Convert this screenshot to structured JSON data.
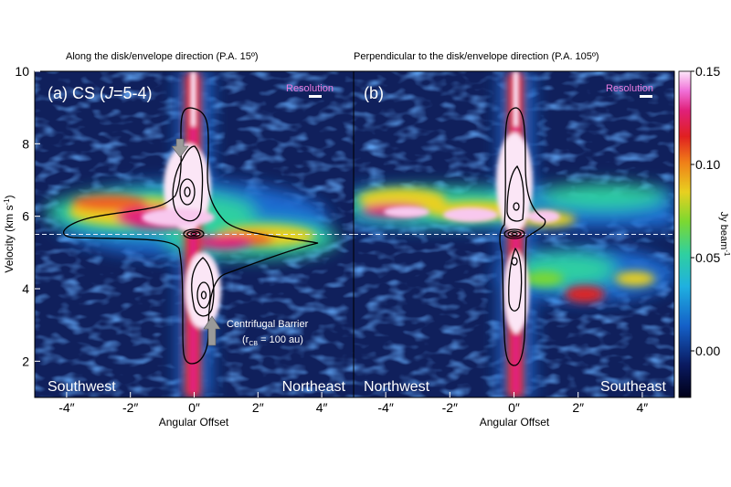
{
  "chart_data": [
    {
      "type": "heatmap",
      "title": "Along the disk/envelope direction (P.A. 15º)",
      "panel_label": "(a) CS (J=5-4)",
      "panel_label_parts": [
        "(a) CS (",
        "J",
        "=5-4)"
      ],
      "resolution_label": "Resolution",
      "xlabel": "Angular Offset",
      "ylabel": "Velocity (km s⁻¹)",
      "ylabel_parts": [
        "Velocity (km s",
        "-1",
        ")"
      ],
      "xlim": [
        -5.0,
        5.0
      ],
      "ylim": [
        1.0,
        10.0
      ],
      "xticks": [
        -4,
        -2,
        0,
        2,
        4
      ],
      "xtick_labels": [
        "-4″",
        "-2″",
        "0″",
        "2″",
        "4″"
      ],
      "yticks": [
        2,
        4,
        6,
        8,
        10
      ],
      "ytick_labels": [
        "2",
        "4",
        "6",
        "8",
        "10"
      ],
      "systemic_velocity": 5.5,
      "left_corner_label": "Southwest",
      "right_corner_label": "Northeast",
      "annotation": "Centrifugal Barrier",
      "annotation_sub": "(rCB = 100 au)",
      "annotation_sub_parts": [
        "(r",
        "CB",
        " = 100 au)"
      ],
      "arrows": [
        {
          "x": -0.25,
          "y": 8.0,
          "direction": "down"
        },
        {
          "x": 0.25,
          "y": 3.0,
          "direction": "up"
        }
      ]
    },
    {
      "type": "heatmap",
      "title": "Perpendicular to the disk/envelope direction (P.A. 105º)",
      "panel_label": "(b)",
      "resolution_label": "Resolution",
      "xlabel": "Angular Offset",
      "xlim": [
        -5.0,
        5.0
      ],
      "ylim": [
        1.0,
        10.0
      ],
      "xticks": [
        -4,
        -2,
        0,
        2,
        4
      ],
      "xtick_labels": [
        "-4″",
        "-2″",
        "0″",
        "2″",
        "4″"
      ],
      "systemic_velocity": 5.5,
      "left_corner_label": "Northwest",
      "right_corner_label": "Southeast"
    }
  ],
  "colorbar": {
    "label": "Jy beam⁻¹",
    "label_parts": [
      "Jy beam",
      "-1"
    ],
    "range": [
      -0.025,
      0.15
    ],
    "ticks": [
      0.0,
      0.05,
      0.1,
      0.15
    ],
    "tick_labels": [
      "0.00",
      "0.05",
      "0.10",
      "0.15"
    ]
  },
  "colors": {
    "background": "#10205c",
    "emission_low": "#1b6bd0",
    "emission_mid": "#2fd0a0",
    "emission_high": "#e8d020",
    "emission_peak": "#e0207a",
    "saturated": "#fbe6f6",
    "contour": "#000000",
    "systemic_line": "#e8f0ff",
    "resolution": "#e97be0",
    "arrow": "#9a9a9a"
  }
}
